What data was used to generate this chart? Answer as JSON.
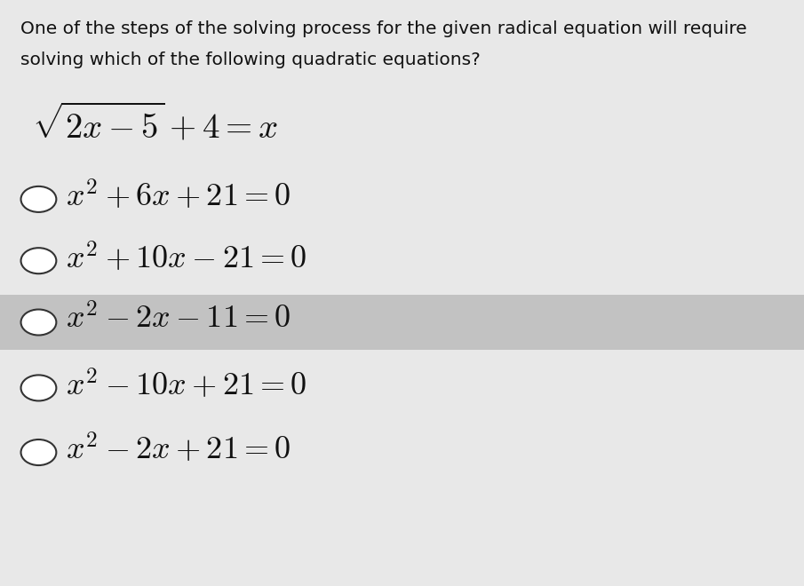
{
  "background_color": "#e8e8e8",
  "question_text_line1": "One of the steps of the solving process for the given radical equation will require",
  "question_text_line2": "solving which of the following quadratic equations?",
  "equation": "$\\sqrt{2x-5} + 4 = x$",
  "options": [
    "$x^2 + 6x + 21 = 0$",
    "$x^2 + 10x - 21 = 0$",
    "$x^2 - 2x - 11 = 0$",
    "$x^2 - 10x + 21 = 0$",
    "$x^2 - 2x + 21 = 0$"
  ],
  "highlighted_option_index": 2,
  "highlight_color": "#c2c2c2",
  "circle_color": "#333333",
  "text_color": "#111111",
  "question_fontsize": 14.5,
  "equation_fontsize": 28,
  "option_fontsize": 26,
  "fig_width": 9.05,
  "fig_height": 6.6
}
